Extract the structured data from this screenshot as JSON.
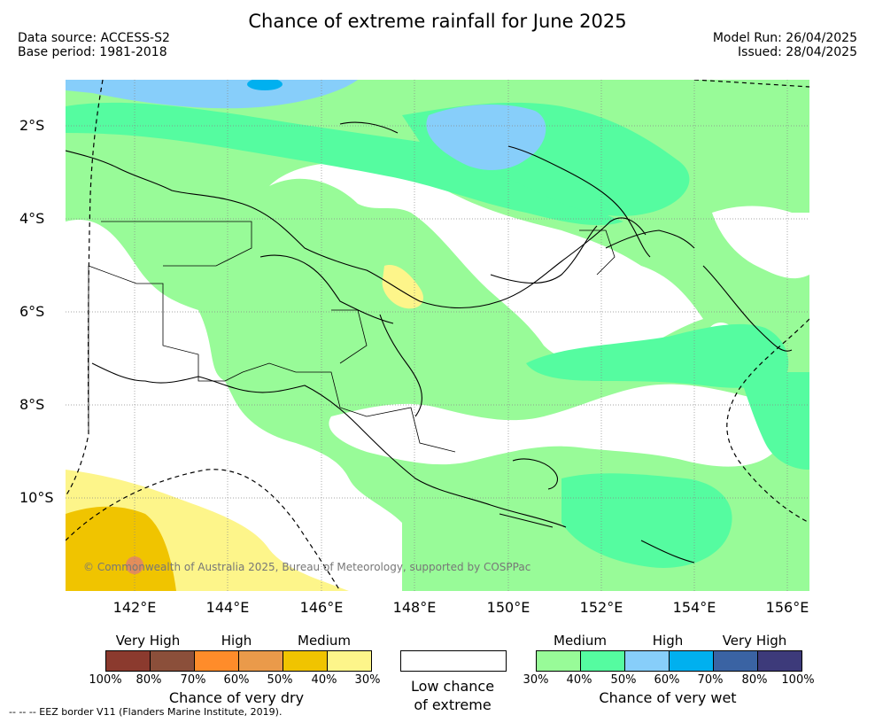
{
  "title": "Chance of extreme rainfall for June 2025",
  "meta": {
    "data_source": "Data source: ACCESS-S2",
    "base_period": "Base period: 1981-2018",
    "model_run": "Model Run: 26/04/2025",
    "issued": "Issued: 28/04/2025"
  },
  "map": {
    "lat_labels": [
      "2°S",
      "4°S",
      "6°S",
      "8°S",
      "10°S"
    ],
    "lon_labels": [
      "142°E",
      "144°E",
      "146°E",
      "148°E",
      "150°E",
      "152°E",
      "154°E",
      "156°E"
    ],
    "copyright": "© Commonwealth of Australia 2025, Bureau of Meteorology, supported by COSPPac"
  },
  "legend": {
    "dry_headers": [
      "Very High",
      "High",
      "Medium"
    ],
    "dry_percent_labels": [
      "100%",
      "80%",
      "70%",
      "60%",
      "50%",
      "40%",
      "30%"
    ],
    "dry_caption": "Chance of very dry",
    "dry_colors": [
      "#8b3a2e",
      "#8b4f3a",
      "#ff8c2a",
      "#ea9a4a",
      "#f0c400",
      "#fdf58a"
    ],
    "low_caption_line1": "Low chance",
    "low_caption_line2": "of extreme",
    "wet_headers": [
      "Medium",
      "High",
      "Very High"
    ],
    "wet_percent_labels": [
      "30%",
      "40%",
      "50%",
      "60%",
      "70%",
      "80%",
      "100%"
    ],
    "wet_caption": "Chance of very wet",
    "wet_colors": [
      "#98fb98",
      "#55fca0",
      "#87cefa",
      "#00b0ef",
      "#3a63a3",
      "#3d3a7a"
    ],
    "eez_note": "--  --  -- EEZ border V11 (Flanders Marine Institute, 2019)."
  }
}
